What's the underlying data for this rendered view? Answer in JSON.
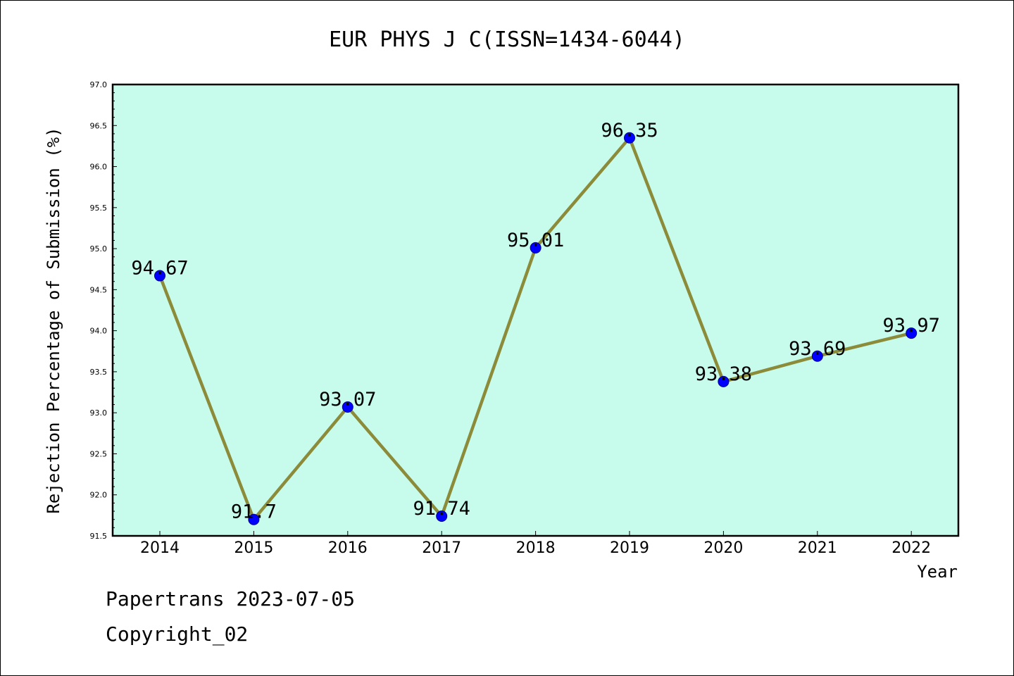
{
  "chart_data": {
    "type": "line",
    "title": "EUR PHYS J C(ISSN=1434-6044)",
    "xlabel": "Year",
    "ylabel": "Rejection Percentage of Submission (%)",
    "categories": [
      "2014",
      "2015",
      "2016",
      "2017",
      "2018",
      "2019",
      "2020",
      "2021",
      "2022"
    ],
    "values": [
      94.67,
      91.7,
      93.07,
      91.74,
      95.01,
      96.35,
      93.38,
      93.69,
      93.97
    ],
    "data_labels": [
      "94.67",
      "91.7",
      "93.07",
      "91.74",
      "95.01",
      "96.35",
      "93.38",
      "93.69",
      "93.97"
    ],
    "ylim": [
      91.5,
      97.0
    ],
    "yticks": [
      "91.5",
      "92.0",
      "92.5",
      "93.0",
      "93.5",
      "94.0",
      "94.5",
      "95.0",
      "95.5",
      "96.0",
      "96.5",
      "97.0"
    ],
    "grid": false,
    "colors": {
      "plot_background": "#c7fcec",
      "line": "#8b8b3a",
      "marker": "#0000ff"
    }
  },
  "footer": {
    "line1": "Papertrans 2023-07-05",
    "line2": "Copyright_02"
  }
}
